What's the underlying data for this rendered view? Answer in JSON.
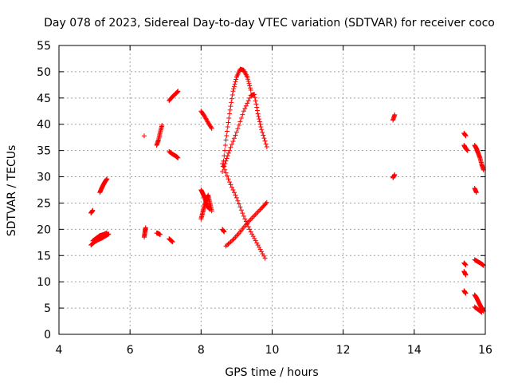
{
  "chart_data": {
    "type": "scatter",
    "title": "Day 078 of 2023, Sidereal Day-to-day VTEC variation (SDTVAR) for receiver coco",
    "xlabel": "GPS time / hours",
    "ylabel": "SDTVAR / TECUs",
    "xlim": [
      4,
      16
    ],
    "ylim": [
      0,
      55
    ],
    "xticks": [
      "4",
      "6",
      "8",
      "10",
      "12",
      "14",
      "16"
    ],
    "yticks": [
      "0",
      "5",
      "10",
      "15",
      "20",
      "25",
      "30",
      "35",
      "40",
      "45",
      "50",
      "55"
    ],
    "grid": true,
    "marker": "+",
    "color": "#ff0000",
    "segments": [
      {
        "x": [
          4.9,
          5.0,
          5.1,
          5.2,
          5.3,
          5.4
        ],
        "y": [
          17.0,
          17.6,
          18.0,
          18.3,
          18.7,
          19.1
        ]
      },
      {
        "x": [
          4.95,
          5.05,
          5.15,
          5.25,
          5.35
        ],
        "y": [
          17.8,
          18.3,
          18.8,
          19.0,
          19.3
        ]
      },
      {
        "x": [
          4.9,
          4.95
        ],
        "y": [
          23.1,
          23.6
        ]
      },
      {
        "x": [
          5.15,
          5.2,
          5.25,
          5.3,
          5.35
        ],
        "y": [
          27.0,
          27.8,
          28.5,
          29.1,
          29.6
        ]
      },
      {
        "x": [
          6.4
        ],
        "y": [
          37.8
        ]
      },
      {
        "x": [
          6.4,
          6.42,
          6.44
        ],
        "y": [
          18.5,
          19.5,
          20.3
        ]
      },
      {
        "x": [
          6.75,
          6.8,
          6.85
        ],
        "y": [
          19.3,
          19.2,
          19.0
        ]
      },
      {
        "x": [
          6.75,
          6.8,
          6.85,
          6.9
        ],
        "y": [
          36.0,
          37.0,
          38.5,
          39.8
        ]
      },
      {
        "x": [
          7.1,
          7.15,
          7.2
        ],
        "y": [
          18.2,
          17.9,
          17.6
        ]
      },
      {
        "x": [
          7.1,
          7.2,
          7.3,
          7.35
        ],
        "y": [
          34.8,
          34.3,
          33.9,
          33.6
        ]
      },
      {
        "x": [
          7.1,
          7.2,
          7.3,
          7.35
        ],
        "y": [
          44.5,
          45.3,
          45.9,
          46.3
        ]
      },
      {
        "x": [
          8.0,
          8.1,
          8.2,
          8.3
        ],
        "y": [
          42.5,
          41.5,
          40.3,
          39.2
        ]
      },
      {
        "x": [
          8.0,
          8.05,
          8.1,
          8.15,
          8.2,
          8.25,
          8.3
        ],
        "y": [
          22.0,
          23.3,
          24.5,
          25.6,
          26.5,
          25.0,
          23.5
        ]
      },
      {
        "x": [
          8.0,
          8.05,
          8.1,
          8.15,
          8.2,
          8.25
        ],
        "y": [
          27.5,
          26.8,
          26.0,
          25.0,
          24.2,
          23.8
        ]
      },
      {
        "x": [
          8.6,
          8.65
        ],
        "y": [
          20.0,
          19.5
        ]
      },
      {
        "x": [
          8.6,
          8.8,
          9.0,
          9.2,
          9.4,
          9.6,
          9.8
        ],
        "y": [
          32.5,
          29.0,
          26.0,
          22.5,
          19.5,
          17.0,
          14.5
        ]
      },
      {
        "x": [
          8.7,
          8.9,
          9.1,
          9.3,
          9.5,
          9.7,
          9.85
        ],
        "y": [
          16.8,
          18.0,
          19.5,
          21.2,
          22.6,
          24.0,
          25.1
        ]
      },
      {
        "x": [
          8.6,
          8.7,
          8.8,
          8.9,
          9.0,
          9.1,
          9.2,
          9.3,
          9.4
        ],
        "y": [
          31.0,
          37.0,
          42.0,
          46.3,
          49.0,
          50.5,
          50.3,
          49.0,
          46.5
        ]
      },
      {
        "x": [
          8.65,
          8.8,
          9.0,
          9.2,
          9.4,
          9.5,
          9.6,
          9.7,
          9.85
        ],
        "y": [
          32.0,
          35.0,
          38.5,
          42.5,
          45.5,
          45.7,
          42.0,
          39.0,
          35.7
        ]
      },
      {
        "x": [
          13.4,
          13.45
        ],
        "y": [
          40.8,
          41.8
        ]
      },
      {
        "x": [
          13.4,
          13.45
        ],
        "y": [
          29.8,
          30.4
        ]
      },
      {
        "x": [
          15.4,
          15.45
        ],
        "y": [
          38.3,
          37.8
        ]
      },
      {
        "x": [
          15.4,
          15.45,
          15.5
        ],
        "y": [
          36.0,
          35.4,
          35.0
        ]
      },
      {
        "x": [
          15.4,
          15.45
        ],
        "y": [
          13.6,
          13.2
        ]
      },
      {
        "x": [
          15.4,
          15.45
        ],
        "y": [
          12.0,
          11.3
        ]
      },
      {
        "x": [
          15.4,
          15.45
        ],
        "y": [
          8.3,
          7.8
        ]
      },
      {
        "x": [
          15.7,
          15.75
        ],
        "y": [
          27.8,
          27.0
        ]
      },
      {
        "x": [
          15.7,
          15.75,
          15.8,
          15.85,
          15.9,
          15.95
        ],
        "y": [
          36.0,
          35.4,
          34.5,
          33.6,
          32.3,
          31.3
        ]
      },
      {
        "x": [
          15.7,
          15.8,
          15.9,
          15.95
        ],
        "y": [
          14.2,
          13.8,
          13.4,
          13.1
        ]
      },
      {
        "x": [
          15.7,
          15.75,
          15.8,
          15.85,
          15.9,
          15.95
        ],
        "y": [
          7.5,
          7.0,
          6.3,
          5.6,
          5.0,
          4.4
        ]
      },
      {
        "x": [
          15.7,
          15.8,
          15.9
        ],
        "y": [
          5.2,
          4.7,
          4.2
        ]
      }
    ]
  }
}
